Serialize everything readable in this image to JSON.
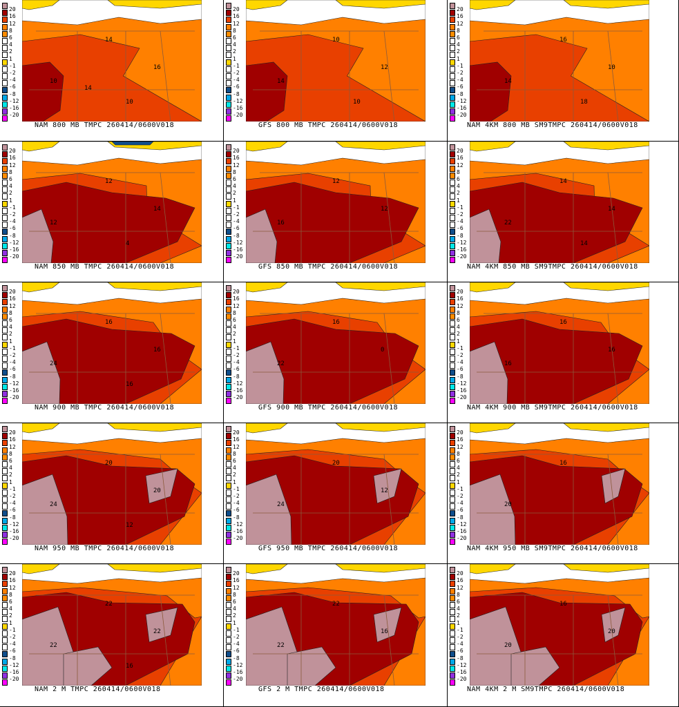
{
  "colorbar": {
    "labels": [
      "20",
      "16",
      "12",
      "8",
      "6",
      "4",
      "2",
      "1",
      "-1",
      "-2",
      "-4",
      "-6",
      "-8",
      "-12",
      "-16",
      "-20"
    ],
    "colors": [
      "#c0929a",
      "#a00000",
      "#e84000",
      "#ff8000",
      "#ff8c00",
      "#ffffff",
      "#ffffff",
      "#ffffff",
      "#ffd700",
      "#ffffff",
      "#ffffff",
      "#ffffff",
      "#104e8b",
      "#00a8e8",
      "#00e8e8",
      "#9030e0",
      "#ff00ff"
    ]
  },
  "panels": [
    {
      "caption": "NAM 800 MB TMPC 260414/0600V018",
      "labels": [
        "10",
        "14",
        "16",
        "10",
        "14"
      ]
    },
    {
      "caption": "GFS 800 MB TMPC 260414/0600V018",
      "labels": [
        "14",
        "10",
        "12",
        "10"
      ]
    },
    {
      "caption": "NAM 4KM 800 MB SM9TMPC 260414/0600V018",
      "labels": [
        "14",
        "16",
        "10",
        "18"
      ]
    },
    {
      "caption": "NAM 850 MB TMPC 260414/0600V018",
      "labels": [
        "12",
        "12",
        "14",
        "4"
      ]
    },
    {
      "caption": "GFS 850 MB TMPC 260414/0600V018",
      "labels": [
        "16",
        "12",
        "12"
      ]
    },
    {
      "caption": "NAM 4KM 850 MB SM9TMPC 260414/0600V018",
      "labels": [
        "22",
        "14",
        "14",
        "14"
      ]
    },
    {
      "caption": "NAM 900 MB TMPC 260414/0600V018",
      "labels": [
        "24",
        "16",
        "16",
        "16"
      ]
    },
    {
      "caption": "GFS 900 MB TMPC 260414/0600V018",
      "labels": [
        "22",
        "16",
        "0"
      ]
    },
    {
      "caption": "NAM 4KM 900 MB SM9TMPC 260414/0600V018",
      "labels": [
        "16",
        "16",
        "16"
      ]
    },
    {
      "caption": "NAM 950 MB TMPC 260414/0600V018",
      "labels": [
        "24",
        "20",
        "20",
        "12"
      ]
    },
    {
      "caption": "GFS 950 MB TMPC 260414/0600V018",
      "labels": [
        "24",
        "20",
        "12"
      ]
    },
    {
      "caption": "NAM 4KM 950 MB SM9TMPC 260414/0600V018",
      "labels": [
        "20",
        "16"
      ]
    },
    {
      "caption": "NAM 2 M TMPC 260414/0600V018",
      "labels": [
        "22",
        "22",
        "22",
        "16"
      ]
    },
    {
      "caption": "GFS 2 M TMPC 260414/0600V018",
      "labels": [
        "22",
        "22",
        "16"
      ]
    },
    {
      "caption": "NAM 4KM 2 M SM9TMPC 260414/0600V018",
      "labels": [
        "20",
        "16",
        "20"
      ]
    }
  ]
}
